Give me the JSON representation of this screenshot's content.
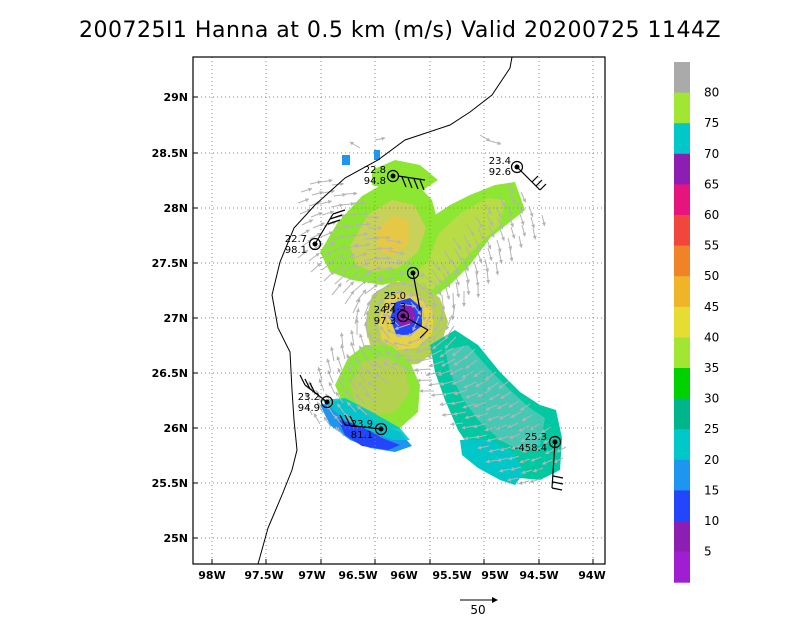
{
  "title": "200725I1 Hanna at 0.5 km (m/s) Valid 20200725 1144Z",
  "map": {
    "lon_range": [
      -98.25,
      -93.8
    ],
    "lat_range": [
      24.8,
      29.4
    ],
    "x_ticks": [
      "98W",
      "97.5W",
      "97W",
      "96.5W",
      "96W",
      "95.5W",
      "95W",
      "94.5W",
      "94W"
    ],
    "y_ticks": [
      "29N",
      "28.5N",
      "28N",
      "27.5N",
      "27N",
      "26.5N",
      "26N",
      "25.5N",
      "25N"
    ],
    "grid": "dotted"
  },
  "colorbar": {
    "labels": [
      "80",
      "75",
      "70",
      "65",
      "60",
      "55",
      "50",
      "45",
      "40",
      "35",
      "30",
      "25",
      "20",
      "15",
      "10",
      "5"
    ],
    "colors": [
      "#aaaaaa",
      "#a0e632",
      "#00c8c8",
      "#8c1eb4",
      "#e6147d",
      "#f0463c",
      "#f08228",
      "#f0b428",
      "#e6dc32",
      "#a0e632",
      "#00d200",
      "#00b48c",
      "#00c8c8",
      "#1e96f0",
      "#2346fa",
      "#8c1eb4"
    ]
  },
  "stations": [
    {
      "top": "22.8",
      "bottom": "94.8"
    },
    {
      "top": "23.4",
      "bottom": "92.6"
    },
    {
      "top": "22.7",
      "bottom": "98.1"
    },
    {
      "top": "25.0",
      "bottom": "97.3"
    },
    {
      "top": "24.4",
      "bottom": "97.3"
    },
    {
      "top": "23.2",
      "bottom": "94.9"
    },
    {
      "top": "23.9",
      "bottom": "81.1"
    },
    {
      "top": "25.3",
      "bottom": "-458.4"
    }
  ],
  "reference_vector": {
    "label": "50"
  }
}
